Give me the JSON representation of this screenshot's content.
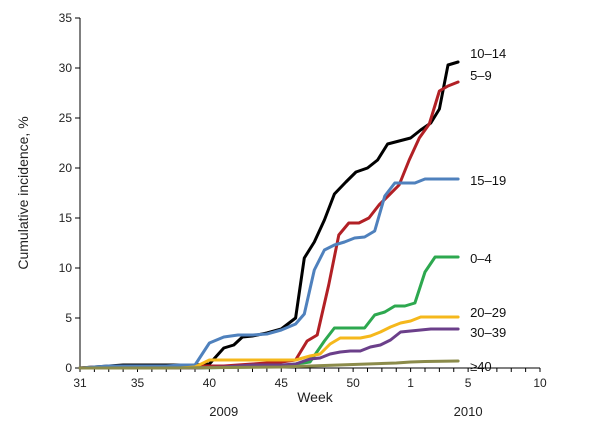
{
  "chart_data": {
    "type": "line",
    "title": "",
    "xlabel": "Week",
    "ylabel": "Cumulative incidence, %",
    "ylim": [
      0,
      35
    ],
    "yticks": [
      "0",
      "5",
      "10",
      "15",
      "20",
      "25",
      "30",
      "35"
    ],
    "xticks": [
      {
        "label": "31",
        "pos": 0
      },
      {
        "label": "35",
        "pos": 4
      },
      {
        "label": "40",
        "pos": 9
      },
      {
        "label": "45",
        "pos": 14
      },
      {
        "label": "50",
        "pos": 19
      },
      {
        "label": "1",
        "pos": 23
      },
      {
        "label": "5",
        "pos": 27
      },
      {
        "label": "10",
        "pos": 32
      }
    ],
    "xlim": [
      0,
      32
    ],
    "year_labels": [
      {
        "label": "2009",
        "pos": 10
      },
      {
        "label": "2010",
        "pos": 27
      }
    ],
    "grid": false,
    "series": [
      {
        "name": "10–14",
        "color": "#000000",
        "points": [
          [
            0,
            0
          ],
          [
            1,
            0.1
          ],
          [
            2,
            0.2
          ],
          [
            3,
            0.3
          ],
          [
            4,
            0.3
          ],
          [
            5,
            0.3
          ],
          [
            6,
            0.3
          ],
          [
            7,
            0.3
          ],
          [
            8,
            0.3
          ],
          [
            9,
            0.4
          ],
          [
            10,
            2.0
          ],
          [
            10.7,
            2.3
          ],
          [
            11.3,
            3.1
          ],
          [
            12,
            3.2
          ],
          [
            13,
            3.5
          ],
          [
            14,
            3.9
          ],
          [
            15,
            5.0
          ],
          [
            15.6,
            11.0
          ],
          [
            16.3,
            12.6
          ],
          [
            17,
            14.8
          ],
          [
            17.7,
            17.4
          ],
          [
            18.5,
            18.6
          ],
          [
            19.2,
            19.6
          ],
          [
            20,
            20.0
          ],
          [
            20.7,
            20.8
          ],
          [
            21.4,
            22.4
          ],
          [
            22.2,
            22.7
          ],
          [
            23,
            23.0
          ],
          [
            23.7,
            23.8
          ],
          [
            24.4,
            24.5
          ],
          [
            25,
            25.9
          ],
          [
            25.6,
            30.3
          ],
          [
            26.3,
            30.6
          ]
        ]
      },
      {
        "name": "5–9",
        "color": "#b22025",
        "points": [
          [
            0,
            0
          ],
          [
            1,
            0.1
          ],
          [
            2,
            0.1
          ],
          [
            3,
            0.1
          ],
          [
            4,
            0.1
          ],
          [
            5,
            0.1
          ],
          [
            6,
            0.1
          ],
          [
            7,
            0.1
          ],
          [
            8,
            0.2
          ],
          [
            9,
            0.2
          ],
          [
            10,
            0.2
          ],
          [
            11,
            0.3
          ],
          [
            12,
            0.4
          ],
          [
            13,
            0.5
          ],
          [
            14,
            0.6
          ],
          [
            15,
            0.8
          ],
          [
            15.8,
            2.7
          ],
          [
            16.5,
            3.3
          ],
          [
            17.3,
            8.3
          ],
          [
            18,
            13.3
          ],
          [
            18.7,
            14.5
          ],
          [
            19.4,
            14.5
          ],
          [
            20.1,
            15.0
          ],
          [
            20.8,
            16.3
          ],
          [
            21.5,
            17.3
          ],
          [
            22.2,
            18.3
          ],
          [
            22.9,
            20.8
          ],
          [
            23.6,
            23.0
          ],
          [
            24.3,
            24.4
          ],
          [
            25,
            27.7
          ],
          [
            25.6,
            28.2
          ],
          [
            26.3,
            28.6
          ]
        ]
      },
      {
        "name": "15–19",
        "color": "#4f81bd",
        "points": [
          [
            0,
            0
          ],
          [
            1,
            0.1
          ],
          [
            2,
            0.2
          ],
          [
            3,
            0.2
          ],
          [
            4,
            0.2
          ],
          [
            5,
            0.2
          ],
          [
            6,
            0.2
          ],
          [
            7,
            0.3
          ],
          [
            8,
            0.3
          ],
          [
            9,
            2.5
          ],
          [
            10,
            3.1
          ],
          [
            11,
            3.3
          ],
          [
            12,
            3.3
          ],
          [
            13,
            3.4
          ],
          [
            14,
            3.8
          ],
          [
            15,
            4.4
          ],
          [
            15.6,
            5.4
          ],
          [
            16.3,
            9.8
          ],
          [
            17,
            11.8
          ],
          [
            17.7,
            12.3
          ],
          [
            18.4,
            12.6
          ],
          [
            19.1,
            13.0
          ],
          [
            19.8,
            13.1
          ],
          [
            20.5,
            13.7
          ],
          [
            21.2,
            17.2
          ],
          [
            21.9,
            18.5
          ],
          [
            22.6,
            18.5
          ],
          [
            23.3,
            18.5
          ],
          [
            24,
            18.9
          ],
          [
            25,
            18.9
          ],
          [
            26.3,
            18.9
          ]
        ]
      },
      {
        "name": "0–4",
        "color": "#2da84f",
        "points": [
          [
            0,
            0
          ],
          [
            4,
            0
          ],
          [
            8,
            0
          ],
          [
            12,
            0.1
          ],
          [
            14,
            0.2
          ],
          [
            15,
            0.4
          ],
          [
            16,
            0.6
          ],
          [
            17,
            2.7
          ],
          [
            17.7,
            4.0
          ],
          [
            18.4,
            4.0
          ],
          [
            19.1,
            4.0
          ],
          [
            19.8,
            4.0
          ],
          [
            20.5,
            5.3
          ],
          [
            21.2,
            5.6
          ],
          [
            21.9,
            6.2
          ],
          [
            22.6,
            6.2
          ],
          [
            23.3,
            6.5
          ],
          [
            24,
            9.6
          ],
          [
            24.7,
            11.1
          ],
          [
            25.5,
            11.1
          ],
          [
            26.3,
            11.1
          ]
        ]
      },
      {
        "name": "20–29",
        "color": "#f5b81c",
        "points": [
          [
            0,
            0
          ],
          [
            4,
            0
          ],
          [
            7,
            0
          ],
          [
            8,
            0.1
          ],
          [
            9,
            0.8
          ],
          [
            10,
            0.8
          ],
          [
            11,
            0.8
          ],
          [
            12,
            0.8
          ],
          [
            13,
            0.8
          ],
          [
            14,
            0.8
          ],
          [
            15,
            0.8
          ],
          [
            16,
            1.2
          ],
          [
            16.7,
            1.4
          ],
          [
            17.4,
            2.4
          ],
          [
            18.1,
            3.0
          ],
          [
            18.8,
            3.0
          ],
          [
            19.5,
            3.0
          ],
          [
            20.2,
            3.2
          ],
          [
            20.9,
            3.6
          ],
          [
            21.6,
            4.1
          ],
          [
            22.3,
            4.5
          ],
          [
            23,
            4.7
          ],
          [
            23.7,
            5.1
          ],
          [
            24.4,
            5.1
          ],
          [
            25.3,
            5.1
          ],
          [
            26.3,
            5.1
          ]
        ]
      },
      {
        "name": "30–39",
        "color": "#6b3f8a",
        "points": [
          [
            0,
            0
          ],
          [
            4,
            0
          ],
          [
            8,
            0
          ],
          [
            10,
            0.1
          ],
          [
            12,
            0.3
          ],
          [
            14,
            0.3
          ],
          [
            15,
            0.4
          ],
          [
            16,
            0.9
          ],
          [
            16.7,
            1.0
          ],
          [
            17.4,
            1.4
          ],
          [
            18.1,
            1.6
          ],
          [
            18.8,
            1.7
          ],
          [
            19.5,
            1.7
          ],
          [
            20.2,
            2.1
          ],
          [
            20.9,
            2.3
          ],
          [
            21.6,
            2.8
          ],
          [
            22.3,
            3.6
          ],
          [
            23,
            3.7
          ],
          [
            23.7,
            3.8
          ],
          [
            24.4,
            3.9
          ],
          [
            25.3,
            3.9
          ],
          [
            26.3,
            3.9
          ]
        ]
      },
      {
        "name": "≥40",
        "color": "#8b8b4a",
        "points": [
          [
            0,
            0
          ],
          [
            6,
            0
          ],
          [
            10,
            0.05
          ],
          [
            14,
            0.1
          ],
          [
            16,
            0.2
          ],
          [
            18,
            0.3
          ],
          [
            20,
            0.4
          ],
          [
            22,
            0.5
          ],
          [
            23,
            0.6
          ],
          [
            24,
            0.65
          ],
          [
            26.3,
            0.7
          ]
        ]
      }
    ]
  }
}
